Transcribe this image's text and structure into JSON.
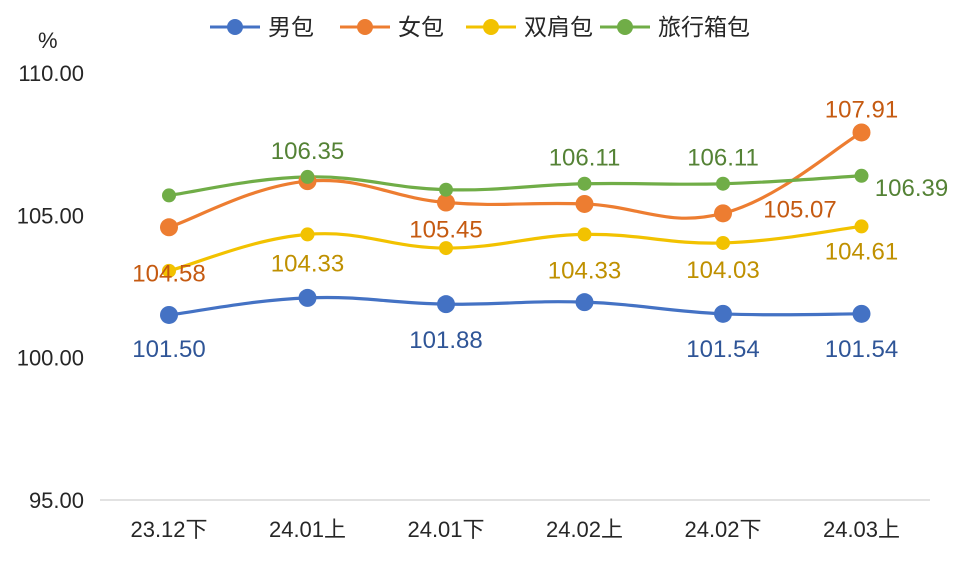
{
  "chart_data": {
    "type": "line",
    "ylabel": "%",
    "ylim": [
      95,
      110
    ],
    "yticks": [
      "110.00",
      "105.00",
      "100.00",
      "95.00"
    ],
    "yticks_values": [
      110,
      105,
      100,
      95
    ],
    "categories": [
      "23.12下",
      "24.01上",
      "24.01下",
      "24.02上",
      "24.02下",
      "24.03上"
    ],
    "legend_position": "top",
    "grid": false,
    "series": [
      {
        "name": "男包",
        "color": "#4472C4",
        "label_color": "#2F5597",
        "values": [
          101.5,
          102.1,
          101.88,
          101.95,
          101.54,
          101.54
        ],
        "labels": [
          "101.50",
          "",
          "101.88",
          "",
          "101.54",
          "101.54"
        ]
      },
      {
        "name": "女包",
        "color": "#ED7D31",
        "label_color": "#C55A11",
        "values": [
          104.58,
          106.2,
          105.45,
          105.4,
          105.07,
          107.91
        ],
        "labels": [
          "104.58",
          "",
          "105.45",
          "",
          "105.07",
          "107.91"
        ]
      },
      {
        "name": "双肩包",
        "color": "#F2C200",
        "label_color": "#BF9000",
        "values": [
          103.05,
          104.33,
          103.85,
          104.33,
          104.03,
          104.61
        ],
        "labels": [
          "",
          "104.33",
          "",
          "104.33",
          "104.03",
          "104.61"
        ]
      },
      {
        "name": "旅行箱包",
        "color": "#70AD47",
        "label_color": "#548235",
        "values": [
          105.7,
          106.35,
          105.9,
          106.11,
          106.11,
          106.39
        ],
        "labels": [
          "",
          "106.35",
          "",
          "106.11",
          "106.11",
          "106.39"
        ]
      }
    ]
  }
}
